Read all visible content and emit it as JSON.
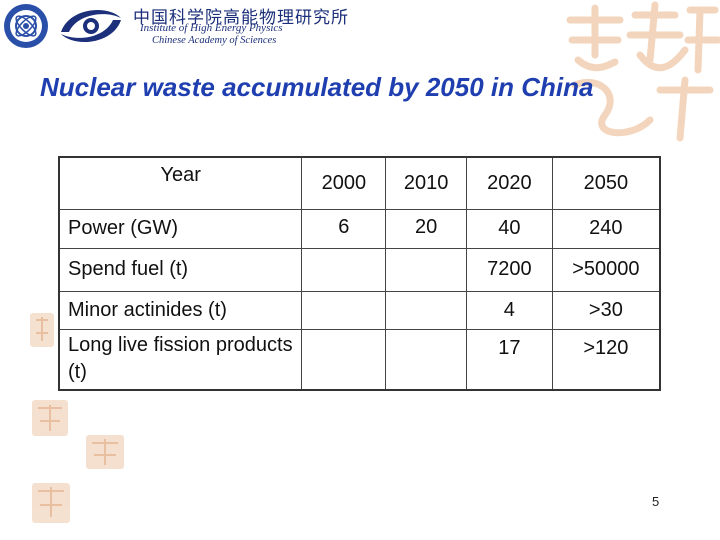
{
  "header": {
    "org_cn": "中国科学院高能物理研究所",
    "org_en_line1": "Institute of High Energy Physics",
    "org_en_line2": "Chinese Academy of Sciences"
  },
  "slide": {
    "title": "Nuclear waste accumulated by 2050 in China",
    "page_number": "5"
  },
  "table": {
    "corner_label": "Year",
    "years": [
      "2000",
      "2010",
      "2020",
      "2050"
    ],
    "rows": [
      {
        "label": "Power (GW)",
        "values": [
          "6",
          "20",
          "40",
          "240"
        ]
      },
      {
        "label": "Spend fuel (t)",
        "values": [
          "",
          "",
          "7200",
          ">50000"
        ]
      },
      {
        "label": "Minor actinides (t)",
        "values": [
          "",
          "",
          "4",
          ">30"
        ]
      },
      {
        "label": "Long live fission products (t)",
        "values": [
          "",
          "",
          "17",
          ">120"
        ]
      }
    ]
  },
  "colors": {
    "title": "#1f3fb0",
    "logo": "#1b2f7a",
    "seal": "#f0c8a8"
  }
}
